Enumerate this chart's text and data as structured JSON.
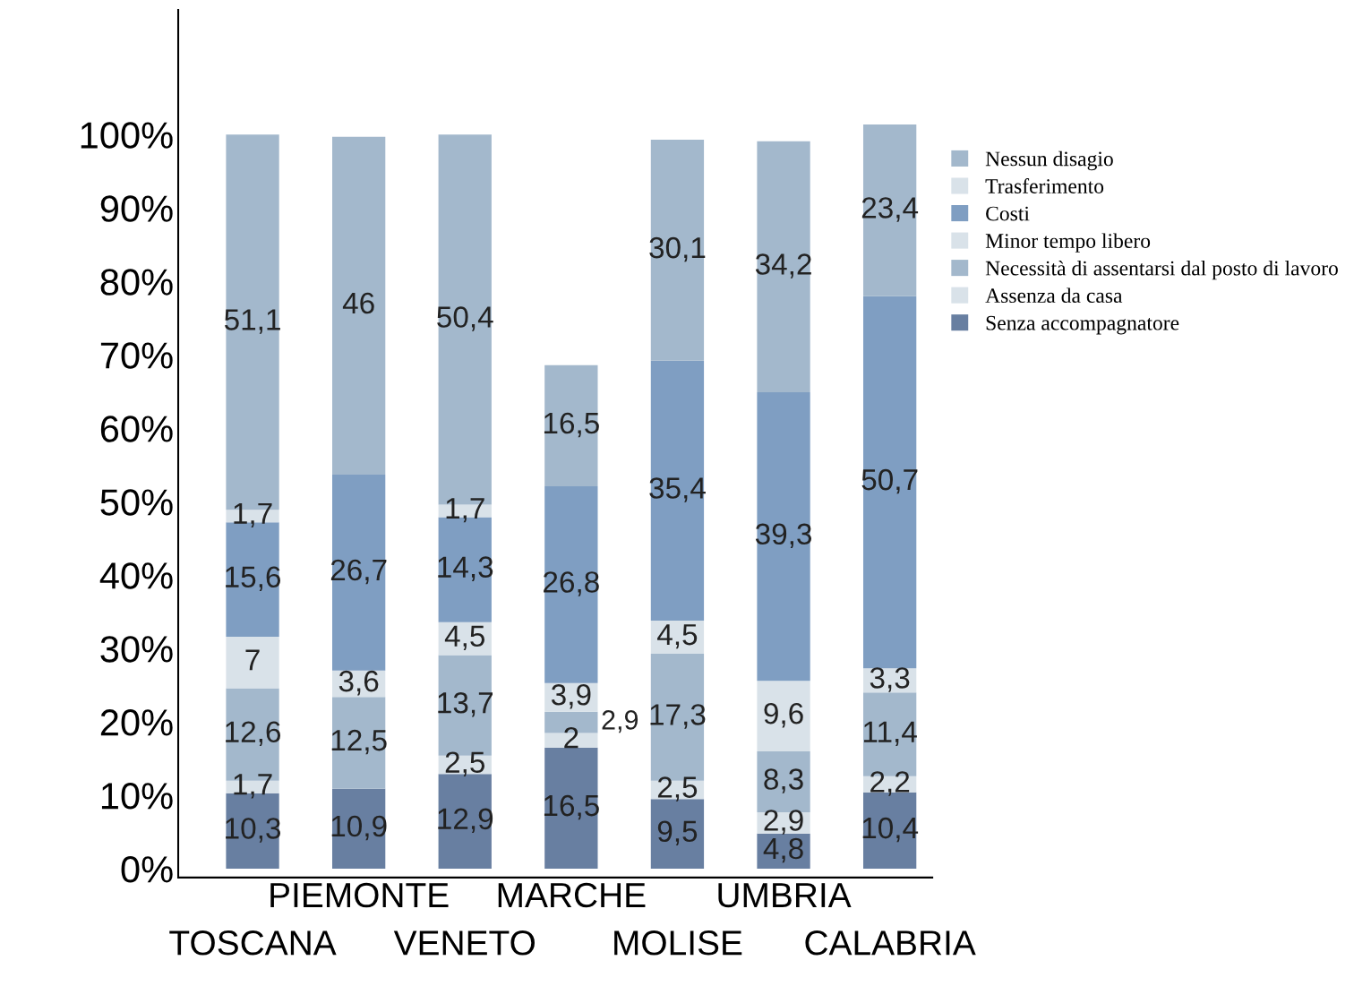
{
  "chart_data": {
    "type": "bar",
    "stacked": true,
    "legend": "top right",
    "grid": false,
    "categories": [
      "TOSCANA",
      "PIEMONTE",
      "VENETO",
      "MARCHE",
      "MOLISE",
      "UMBRIA",
      "CALABRIA"
    ],
    "ylim": [
      -1.2,
      117
    ],
    "yticks": [
      {
        "value": 0,
        "label": "0%"
      },
      {
        "value": 10,
        "label": "10%"
      },
      {
        "value": 20,
        "label": "20%"
      },
      {
        "value": 30,
        "label": "30%"
      },
      {
        "value": 40,
        "label": "40%"
      },
      {
        "value": 50,
        "label": "50%"
      },
      {
        "value": 60,
        "label": "60%"
      },
      {
        "value": 70,
        "label": "70%"
      },
      {
        "value": 80,
        "label": "80%"
      },
      {
        "value": 90,
        "label": "90%"
      },
      {
        "value": 100,
        "label": "100%"
      }
    ],
    "series": [
      {
        "name": "Senza accompagnatore",
        "color": "#687fa1",
        "values": [
          10.3,
          10.9,
          12.9,
          16.5,
          9.5,
          4.8,
          10.4
        ],
        "value_labels": [
          "10,3",
          "10,9",
          "12,9",
          "16,5",
          "9,5",
          "4,8",
          "10,4"
        ]
      },
      {
        "name": "Assenza da casa",
        "color": "#d9e2e9",
        "values": [
          1.7,
          null,
          2.5,
          2,
          2.5,
          2.9,
          2.2
        ],
        "value_labels": [
          "1,7",
          null,
          "2,5",
          "2",
          "2,5",
          "2,9",
          "2,2"
        ]
      },
      {
        "name": "Necessità di assentarsi dal posto di lavoro",
        "color": "#a3b8cc",
        "values": [
          12.6,
          12.5,
          13.7,
          2.9,
          17.3,
          8.3,
          11.4
        ],
        "value_labels": [
          "12,6",
          "12,5",
          "13,7",
          "2,9",
          "17,3",
          "8,3",
          "11,4"
        ]
      },
      {
        "name": "Minor tempo libero",
        "color": "#d9e2e9",
        "values": [
          7,
          3.6,
          4.5,
          3.9,
          4.5,
          9.6,
          3.3
        ],
        "value_labels": [
          "7",
          "3,6",
          "4,5",
          "3,9",
          "4,5",
          "9,6",
          "3,3"
        ]
      },
      {
        "name": "Costi",
        "color": "#7f9ec2",
        "values": [
          15.6,
          26.7,
          14.3,
          26.8,
          35.4,
          39.3,
          50.7
        ],
        "value_labels": [
          "15,6",
          "26,7",
          "14,3",
          "26,8",
          "35,4",
          "39,3",
          "50,7"
        ]
      },
      {
        "name": "Trasferimento",
        "color": "#d9e2e9",
        "values": [
          1.7,
          null,
          1.7,
          null,
          null,
          null,
          null
        ],
        "value_labels": [
          "1,7",
          null,
          "1,7",
          null,
          null,
          null,
          null
        ]
      },
      {
        "name": "Nessun disagio",
        "color": "#a3b8cc",
        "values": [
          51.1,
          46,
          50.4,
          16.5,
          30.1,
          34.2,
          23.4
        ],
        "value_labels": [
          "51,1",
          "46",
          "50,4",
          "16,5",
          "30,1",
          "34,2",
          "23,4"
        ]
      }
    ]
  }
}
